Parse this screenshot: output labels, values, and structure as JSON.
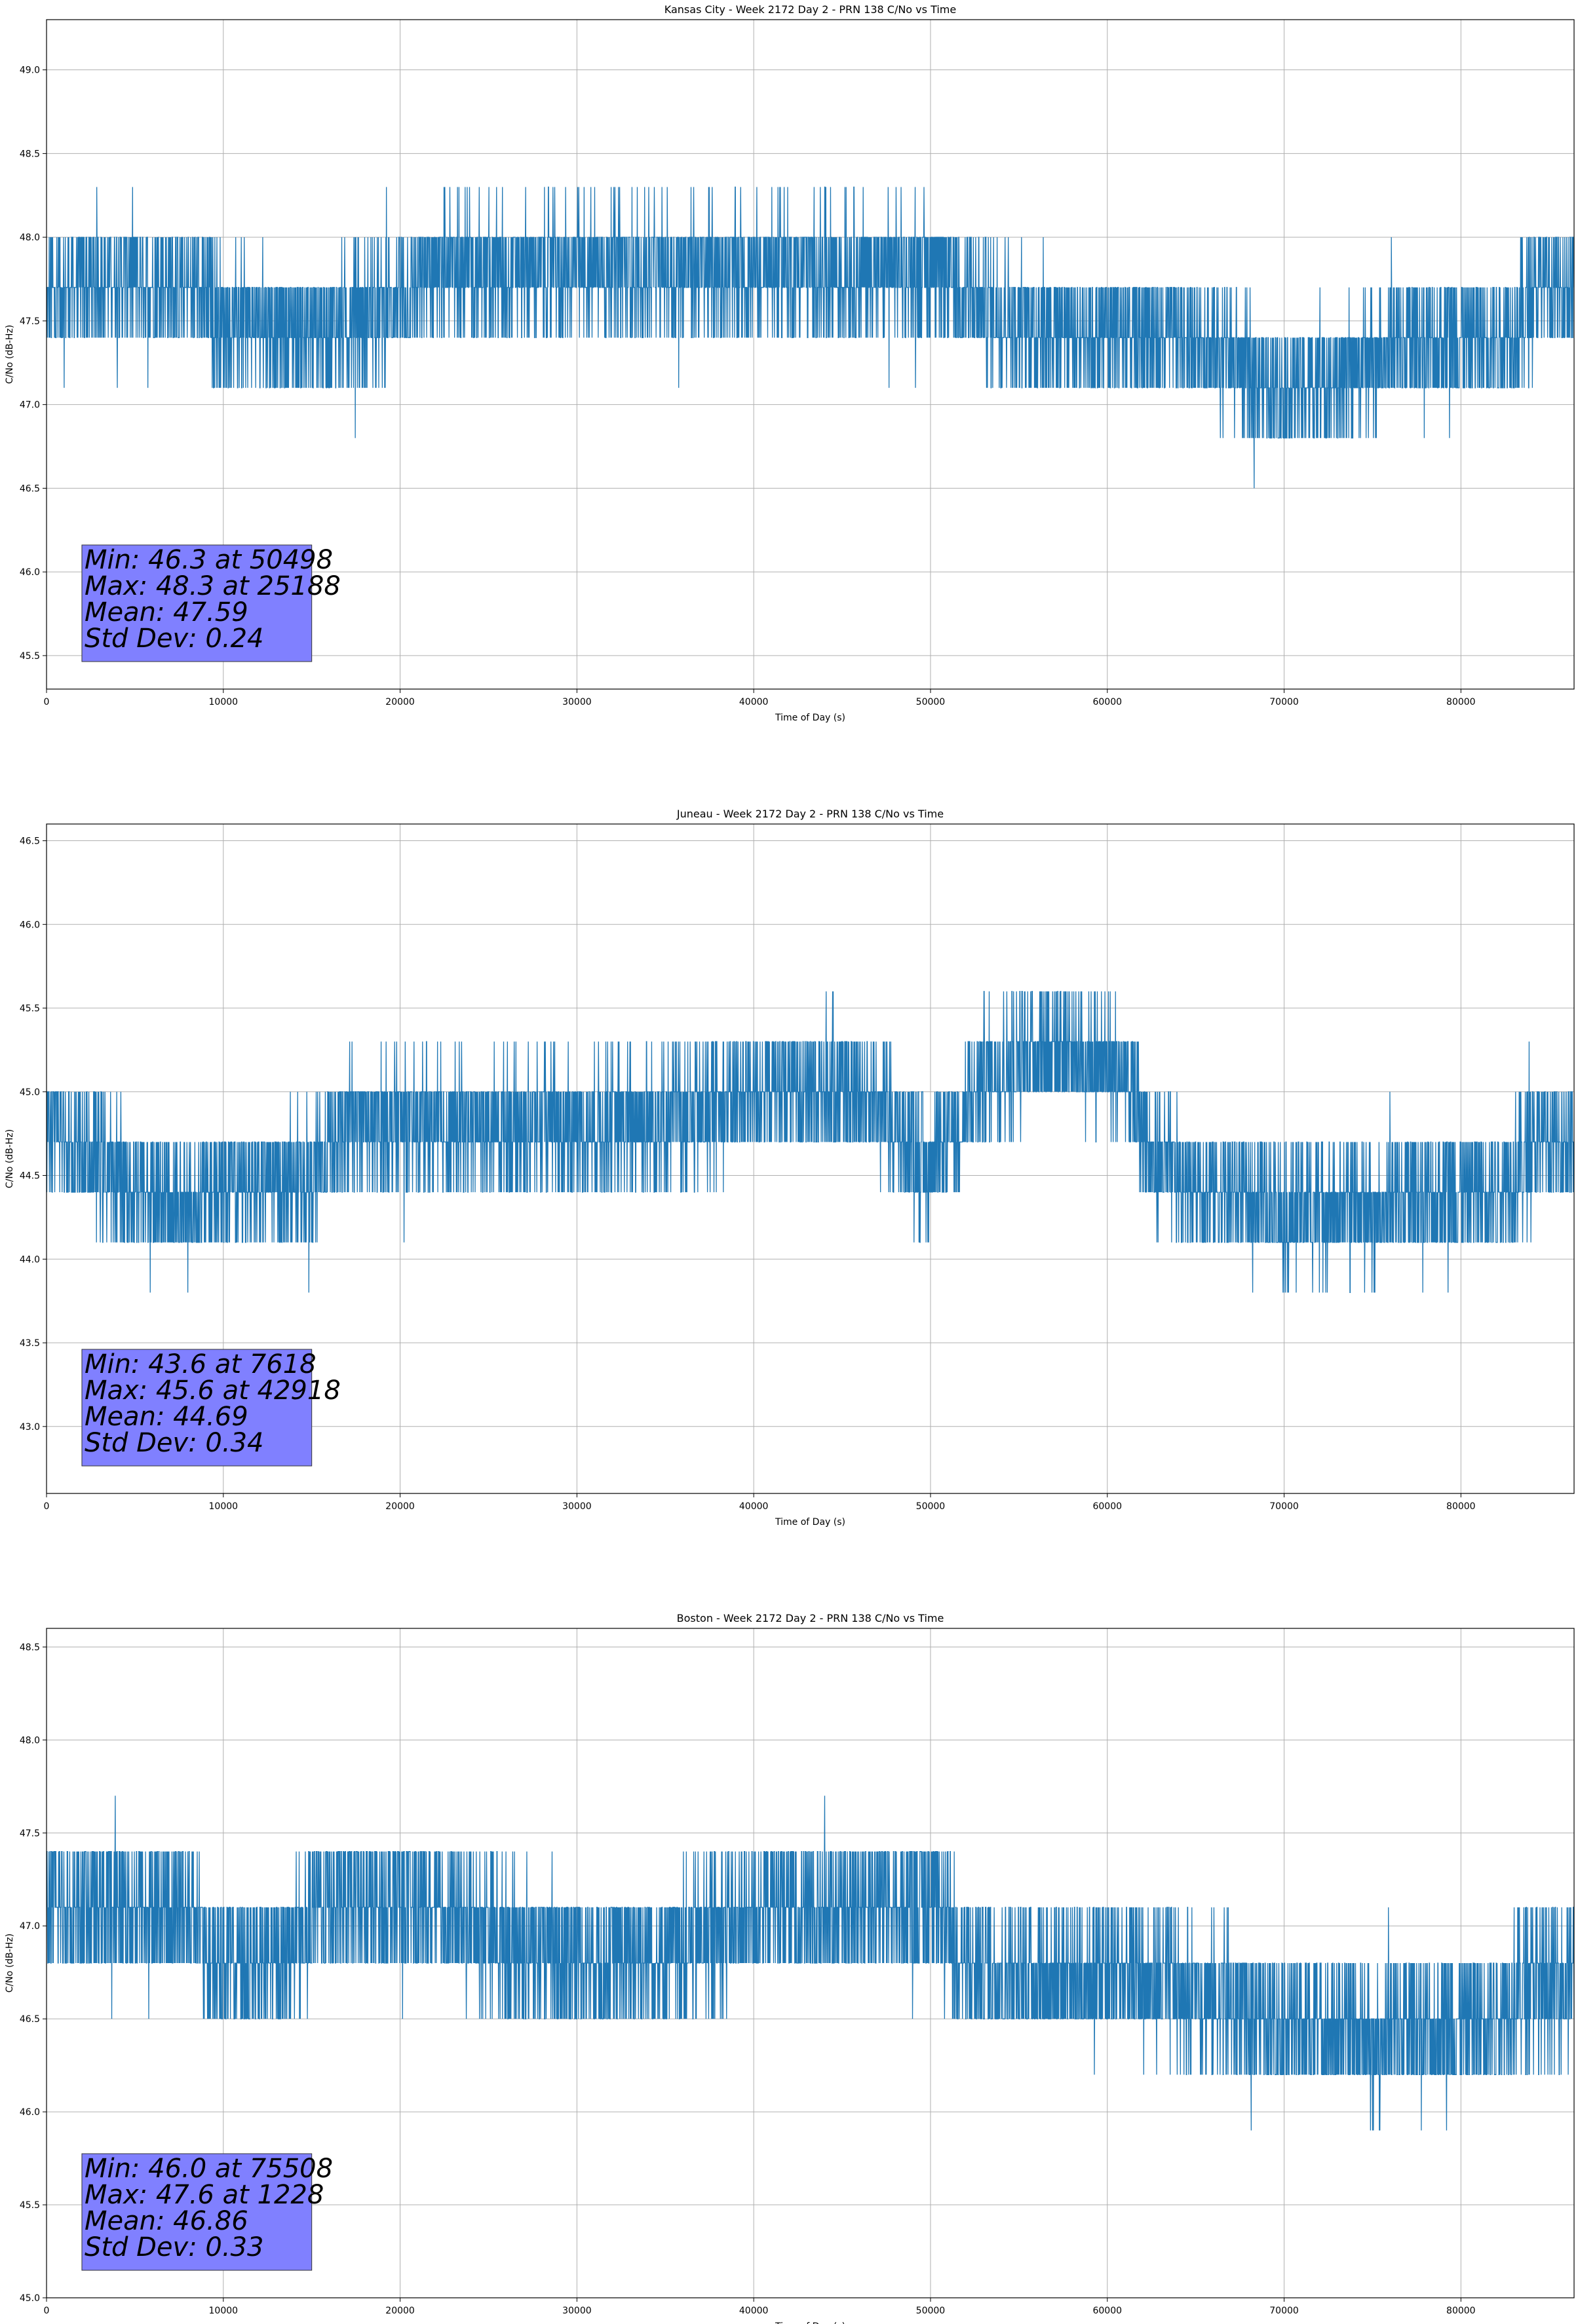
{
  "chart_data": [
    {
      "type": "line",
      "title": "Kansas City - Week 2172 Day 2 - PRN 138 C/No vs Time",
      "xlabel": "Time of Day (s)",
      "ylabel": "C/No (dB-Hz)",
      "xlim": [
        0,
        86400
      ],
      "ylim": [
        45.3,
        49.3
      ],
      "x_ticks": [
        0,
        10000,
        20000,
        30000,
        40000,
        50000,
        60000,
        70000,
        80000
      ],
      "y_ticks": [
        45.5,
        46.0,
        46.5,
        47.0,
        47.5,
        48.0,
        48.5,
        49.0
      ],
      "grid": true,
      "series_color": "#1f77b4",
      "stats_box_color": "#8080ff",
      "stats": [
        "Min: 46.3 at 50498",
        "Max: 48.3 at 25188",
        "Mean: 47.59",
        "Std Dev: 0.24"
      ],
      "series": [
        {
          "x": [
            0,
            3000,
            8000,
            10000,
            15000,
            20000,
            22000,
            30000,
            40000,
            50000,
            52800,
            55000,
            60000,
            65000,
            68000,
            70000,
            74000,
            75000,
            80000,
            83000,
            84500,
            86400
          ],
          "y": [
            47.6,
            47.8,
            47.7,
            47.5,
            47.45,
            47.6,
            47.8,
            47.8,
            47.8,
            47.8,
            47.6,
            47.5,
            47.45,
            47.4,
            47.2,
            47.1,
            47.2,
            47.3,
            47.4,
            47.45,
            47.7,
            47.7
          ]
        }
      ]
    },
    {
      "type": "line",
      "title": "Juneau - Week 2172 Day 2 - PRN 138 C/No vs Time",
      "xlabel": "Time of Day (s)",
      "ylabel": "C/No (dB-Hz)",
      "xlim": [
        0,
        86400
      ],
      "ylim": [
        42.6,
        46.6
      ],
      "x_ticks": [
        0,
        10000,
        20000,
        30000,
        40000,
        50000,
        60000,
        70000,
        80000
      ],
      "y_ticks": [
        43.0,
        43.5,
        44.0,
        44.5,
        45.0,
        45.5,
        46.0,
        46.5
      ],
      "grid": true,
      "series_color": "#1f77b4",
      "stats_box_color": "#8080ff",
      "stats": [
        "Min: 43.6 at 7618",
        "Max: 45.6 at 42918",
        "Mean: 44.69",
        "Std Dev: 0.34"
      ],
      "series": [
        {
          "x": [
            0,
            2500,
            5000,
            8000,
            10000,
            15000,
            17000,
            20000,
            30000,
            37000,
            40000,
            45000,
            48000,
            50000,
            53000,
            57000,
            61000,
            62500,
            66000,
            70000,
            75000,
            80000,
            83000,
            84500,
            86400
          ],
          "y": [
            44.8,
            44.6,
            44.45,
            44.3,
            44.45,
            44.5,
            44.8,
            44.8,
            44.8,
            44.85,
            45.0,
            45.1,
            44.8,
            44.5,
            45.1,
            45.3,
            45.1,
            44.6,
            44.4,
            44.3,
            44.3,
            44.4,
            44.5,
            44.7,
            44.7
          ]
        }
      ]
    },
    {
      "type": "line",
      "title": "Boston - Week 2172 Day 2 - PRN 138 C/No vs Time",
      "xlabel": "Time of Day (s)",
      "ylabel": "C/No (dB-Hz)",
      "xlim": [
        0,
        86400
      ],
      "ylim": [
        45.0,
        48.6
      ],
      "x_ticks": [
        0,
        10000,
        20000,
        30000,
        40000,
        50000,
        60000,
        70000,
        80000
      ],
      "y_ticks": [
        45.0,
        45.5,
        46.0,
        46.5,
        47.0,
        47.5,
        48.0,
        48.5
      ],
      "grid": true,
      "series_color": "#1f77b4",
      "stats_box_color": "#8080ff",
      "stats": [
        "Min: 46.0 at 75508",
        "Max: 47.6 at 1228",
        "Mean: 46.86",
        "Std Dev: 0.33"
      ],
      "series": [
        {
          "x": [
            0,
            3000,
            8500,
            9000,
            13000,
            15500,
            20000,
            24000,
            28000,
            35000,
            41000,
            45000,
            50000,
            52000,
            55000,
            60000,
            65000,
            70000,
            75000,
            80000,
            84000,
            86400
          ],
          "y": [
            47.1,
            47.1,
            47.1,
            46.8,
            46.8,
            47.1,
            47.1,
            47.0,
            46.85,
            46.85,
            47.1,
            47.15,
            47.1,
            46.8,
            46.75,
            46.75,
            46.65,
            46.5,
            46.4,
            46.45,
            46.7,
            46.7
          ]
        }
      ]
    }
  ]
}
